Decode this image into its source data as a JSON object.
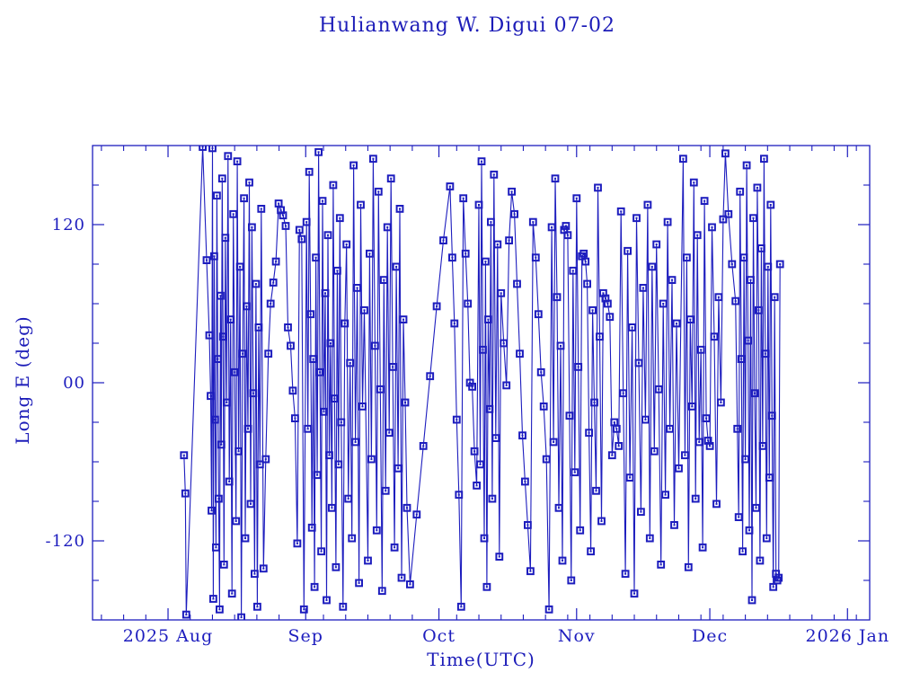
{
  "title": "Hulianwang W. Digui 07-02",
  "chart_data": {
    "type": "line",
    "title": "Hulianwang W. Digui 07-02",
    "xlabel": "Time(UTC)",
    "ylabel": "Long E (deg)",
    "ylim": [
      -180,
      180
    ],
    "y_ticks_major": [
      {
        "value": 120,
        "label": "120"
      },
      {
        "value": 0,
        "label": "00"
      },
      {
        "value": -120,
        "label": "-120"
      }
    ],
    "y_minor_step": 30,
    "x_range_days": [
      0,
      175
    ],
    "x_epoch_note": "day 0 = left edge (2025 Jul 15); data in points is [day, longitude_deg_east]",
    "x_ticks_major": [
      {
        "day": 17,
        "label": "2025 Aug"
      },
      {
        "day": 48,
        "label": "Sep"
      },
      {
        "day": 78,
        "label": "Oct"
      },
      {
        "day": 109,
        "label": "Nov"
      },
      {
        "day": 139,
        "label": "Dec"
      },
      {
        "day": 170,
        "label": "2026 Jan"
      }
    ],
    "x_minor_step_days": 5,
    "grid": false,
    "legend": "none",
    "marker": "open-square-with-dot",
    "colors": {
      "plot": "#1d1dbe",
      "background": "#ffffff"
    },
    "points": [
      [
        20.6,
        -55
      ],
      [
        20.9,
        -84
      ],
      [
        21.1,
        -176
      ],
      [
        24.8,
        179
      ],
      [
        25.7,
        93
      ],
      [
        26.3,
        36
      ],
      [
        26.6,
        -10
      ],
      [
        26.8,
        -97
      ],
      [
        27.0,
        178
      ],
      [
        27.2,
        -164
      ],
      [
        27.4,
        96
      ],
      [
        27.6,
        -28
      ],
      [
        27.8,
        -125
      ],
      [
        28.0,
        142
      ],
      [
        28.2,
        18
      ],
      [
        28.4,
        -88
      ],
      [
        28.6,
        -172
      ],
      [
        28.8,
        66
      ],
      [
        29.0,
        -47
      ],
      [
        29.2,
        155
      ],
      [
        29.4,
        35
      ],
      [
        29.6,
        -138
      ],
      [
        29.9,
        110
      ],
      [
        30.2,
        -15
      ],
      [
        30.5,
        172
      ],
      [
        30.8,
        -75
      ],
      [
        31.1,
        48
      ],
      [
        31.4,
        -160
      ],
      [
        31.7,
        128
      ],
      [
        32.0,
        8
      ],
      [
        32.3,
        -105
      ],
      [
        32.6,
        168
      ],
      [
        32.9,
        -52
      ],
      [
        33.2,
        88
      ],
      [
        33.5,
        -178
      ],
      [
        33.8,
        22
      ],
      [
        34.1,
        140
      ],
      [
        34.4,
        -118
      ],
      [
        34.7,
        58
      ],
      [
        35.0,
        -35
      ],
      [
        35.3,
        152
      ],
      [
        35.6,
        -92
      ],
      [
        35.9,
        118
      ],
      [
        36.2,
        -8
      ],
      [
        36.5,
        -145
      ],
      [
        36.8,
        75
      ],
      [
        37.1,
        -170
      ],
      [
        37.4,
        42
      ],
      [
        37.7,
        -62
      ],
      [
        38.0,
        132
      ],
      [
        38.5,
        -141
      ],
      [
        39.0,
        -58
      ],
      [
        39.6,
        22
      ],
      [
        40.1,
        60
      ],
      [
        40.7,
        76
      ],
      [
        41.3,
        92
      ],
      [
        41.9,
        136
      ],
      [
        42.4,
        131
      ],
      [
        42.9,
        127
      ],
      [
        43.5,
        119
      ],
      [
        44.0,
        42
      ],
      [
        44.6,
        28
      ],
      [
        45.1,
        -6
      ],
      [
        45.6,
        -27
      ],
      [
        46.1,
        -122
      ],
      [
        46.6,
        116
      ],
      [
        47.1,
        109
      ],
      [
        47.6,
        -172
      ],
      [
        48.2,
        122
      ],
      [
        48.5,
        -35
      ],
      [
        48.8,
        160
      ],
      [
        49.1,
        52
      ],
      [
        49.4,
        -110
      ],
      [
        49.7,
        18
      ],
      [
        50.0,
        -155
      ],
      [
        50.3,
        95
      ],
      [
        50.6,
        -70
      ],
      [
        50.9,
        175
      ],
      [
        51.2,
        8
      ],
      [
        51.5,
        -128
      ],
      [
        51.8,
        138
      ],
      [
        52.1,
        -22
      ],
      [
        52.4,
        68
      ],
      [
        52.7,
        -165
      ],
      [
        53.0,
        112
      ],
      [
        53.3,
        -55
      ],
      [
        53.6,
        30
      ],
      [
        53.9,
        -95
      ],
      [
        54.2,
        150
      ],
      [
        54.5,
        -12
      ],
      [
        54.8,
        -140
      ],
      [
        55.1,
        85
      ],
      [
        55.4,
        -62
      ],
      [
        55.7,
        125
      ],
      [
        56.0,
        -30
      ],
      [
        56.4,
        -170
      ],
      [
        56.8,
        45
      ],
      [
        57.2,
        105
      ],
      [
        57.6,
        -88
      ],
      [
        58.0,
        15
      ],
      [
        58.4,
        -118
      ],
      [
        58.8,
        165
      ],
      [
        59.2,
        -45
      ],
      [
        59.6,
        72
      ],
      [
        60.0,
        -152
      ],
      [
        60.4,
        135
      ],
      [
        60.8,
        -18
      ],
      [
        61.2,
        55
      ],
      [
        62.0,
        -135
      ],
      [
        62.4,
        98
      ],
      [
        62.8,
        -58
      ],
      [
        63.2,
        170
      ],
      [
        63.6,
        28
      ],
      [
        64.0,
        -112
      ],
      [
        64.4,
        145
      ],
      [
        64.8,
        -5
      ],
      [
        65.2,
        -158
      ],
      [
        65.6,
        78
      ],
      [
        66.0,
        -82
      ],
      [
        66.4,
        118
      ],
      [
        66.8,
        -38
      ],
      [
        67.2,
        155
      ],
      [
        67.6,
        12
      ],
      [
        68.0,
        -125
      ],
      [
        68.4,
        88
      ],
      [
        68.8,
        -65
      ],
      [
        69.2,
        132
      ],
      [
        69.6,
        -148
      ],
      [
        70.0,
        48
      ],
      [
        70.4,
        -15
      ],
      [
        70.8,
        -95
      ],
      [
        71.5,
        -153
      ],
      [
        73.0,
        -100
      ],
      [
        74.5,
        -48
      ],
      [
        76.0,
        5
      ],
      [
        77.5,
        58
      ],
      [
        79.0,
        108
      ],
      [
        80.5,
        149
      ],
      [
        81.0,
        95
      ],
      [
        81.5,
        45
      ],
      [
        82.0,
        -28
      ],
      [
        82.5,
        -85
      ],
      [
        83.0,
        -170
      ],
      [
        83.5,
        140
      ],
      [
        84.0,
        98
      ],
      [
        84.5,
        60
      ],
      [
        85.0,
        0
      ],
      [
        85.5,
        -3
      ],
      [
        86.0,
        -52
      ],
      [
        86.5,
        -78
      ],
      [
        87.0,
        135
      ],
      [
        87.3,
        -62
      ],
      [
        87.6,
        168
      ],
      [
        87.9,
        25
      ],
      [
        88.2,
        -118
      ],
      [
        88.5,
        92
      ],
      [
        88.8,
        -155
      ],
      [
        89.1,
        48
      ],
      [
        89.4,
        -20
      ],
      [
        89.7,
        122
      ],
      [
        90.0,
        -88
      ],
      [
        90.4,
        158
      ],
      [
        90.8,
        -42
      ],
      [
        91.2,
        105
      ],
      [
        91.6,
        -132
      ],
      [
        92.0,
        68
      ],
      [
        92.6,
        30
      ],
      [
        93.2,
        -2
      ],
      [
        93.8,
        108
      ],
      [
        94.4,
        145
      ],
      [
        95.0,
        128
      ],
      [
        95.6,
        75
      ],
      [
        96.2,
        22
      ],
      [
        96.8,
        -40
      ],
      [
        97.4,
        -75
      ],
      [
        98.0,
        -108
      ],
      [
        98.6,
        -143
      ],
      [
        99.2,
        122
      ],
      [
        99.8,
        95
      ],
      [
        100.4,
        52
      ],
      [
        101.0,
        8
      ],
      [
        101.6,
        -18
      ],
      [
        102.2,
        -58
      ],
      [
        102.8,
        -172
      ],
      [
        103.4,
        118
      ],
      [
        103.8,
        -45
      ],
      [
        104.2,
        155
      ],
      [
        104.6,
        65
      ],
      [
        105.0,
        -95
      ],
      [
        105.4,
        28
      ],
      [
        105.8,
        -135
      ],
      [
        106.2,
        116
      ],
      [
        106.6,
        119
      ],
      [
        107.0,
        112
      ],
      [
        107.4,
        -25
      ],
      [
        107.8,
        -150
      ],
      [
        108.2,
        85
      ],
      [
        108.6,
        -68
      ],
      [
        109.0,
        140
      ],
      [
        109.4,
        12
      ],
      [
        109.8,
        -112
      ],
      [
        110.2,
        96
      ],
      [
        110.6,
        98
      ],
      [
        111.0,
        92
      ],
      [
        111.4,
        75
      ],
      [
        111.8,
        -38
      ],
      [
        112.2,
        -128
      ],
      [
        112.6,
        55
      ],
      [
        113.0,
        -15
      ],
      [
        113.4,
        -82
      ],
      [
        113.8,
        148
      ],
      [
        114.2,
        35
      ],
      [
        114.6,
        -105
      ],
      [
        115.0,
        68
      ],
      [
        115.5,
        64
      ],
      [
        116.0,
        60
      ],
      [
        116.5,
        50
      ],
      [
        117.0,
        -55
      ],
      [
        117.5,
        -30
      ],
      [
        118.0,
        -35
      ],
      [
        118.5,
        -48
      ],
      [
        119.0,
        130
      ],
      [
        119.5,
        -8
      ],
      [
        120.0,
        -145
      ],
      [
        120.5,
        100
      ],
      [
        121.0,
        -72
      ],
      [
        121.5,
        42
      ],
      [
        122.0,
        -160
      ],
      [
        122.5,
        125
      ],
      [
        123.0,
        15
      ],
      [
        123.5,
        -98
      ],
      [
        124.0,
        72
      ],
      [
        124.5,
        -28
      ],
      [
        125.0,
        135
      ],
      [
        125.5,
        -118
      ],
      [
        126.0,
        88
      ],
      [
        126.5,
        -52
      ],
      [
        127.0,
        105
      ],
      [
        127.5,
        -5
      ],
      [
        128.0,
        -138
      ],
      [
        128.5,
        60
      ],
      [
        129.0,
        -85
      ],
      [
        129.5,
        122
      ],
      [
        130.0,
        -35
      ],
      [
        130.5,
        78
      ],
      [
        131.0,
        -108
      ],
      [
        131.5,
        45
      ],
      [
        132.0,
        -65
      ],
      [
        133.0,
        170
      ],
      [
        133.4,
        -55
      ],
      [
        133.8,
        95
      ],
      [
        134.2,
        -140
      ],
      [
        134.6,
        48
      ],
      [
        135.0,
        -18
      ],
      [
        135.4,
        152
      ],
      [
        135.8,
        -88
      ],
      [
        136.2,
        112
      ],
      [
        136.6,
        -45
      ],
      [
        137.0,
        25
      ],
      [
        137.4,
        -125
      ],
      [
        137.8,
        138
      ],
      [
        138.2,
        -27
      ],
      [
        138.6,
        -44
      ],
      [
        139.0,
        -48
      ],
      [
        139.5,
        118
      ],
      [
        140.0,
        35
      ],
      [
        140.5,
        -92
      ],
      [
        141.0,
        65
      ],
      [
        141.5,
        -15
      ],
      [
        142.0,
        124
      ],
      [
        142.5,
        174
      ],
      [
        143.2,
        128
      ],
      [
        144.0,
        90
      ],
      [
        144.8,
        62
      ],
      [
        145.2,
        -35
      ],
      [
        145.5,
        -102
      ],
      [
        145.8,
        145
      ],
      [
        146.1,
        18
      ],
      [
        146.4,
        -128
      ],
      [
        146.7,
        95
      ],
      [
        147.0,
        -58
      ],
      [
        147.3,
        165
      ],
      [
        147.6,
        32
      ],
      [
        147.9,
        -112
      ],
      [
        148.2,
        78
      ],
      [
        148.5,
        -165
      ],
      [
        148.8,
        125
      ],
      [
        149.1,
        -8
      ],
      [
        149.4,
        -95
      ],
      [
        149.7,
        148
      ],
      [
        150.0,
        55
      ],
      [
        150.3,
        -135
      ],
      [
        150.6,
        102
      ],
      [
        150.9,
        -48
      ],
      [
        151.2,
        170
      ],
      [
        151.5,
        22
      ],
      [
        151.8,
        -118
      ],
      [
        152.1,
        88
      ],
      [
        152.4,
        -72
      ],
      [
        152.7,
        135
      ],
      [
        153.0,
        -25
      ],
      [
        153.3,
        -155
      ],
      [
        153.6,
        65
      ],
      [
        153.9,
        -145
      ],
      [
        154.2,
        -150
      ],
      [
        154.5,
        -148
      ],
      [
        154.8,
        90
      ]
    ]
  }
}
